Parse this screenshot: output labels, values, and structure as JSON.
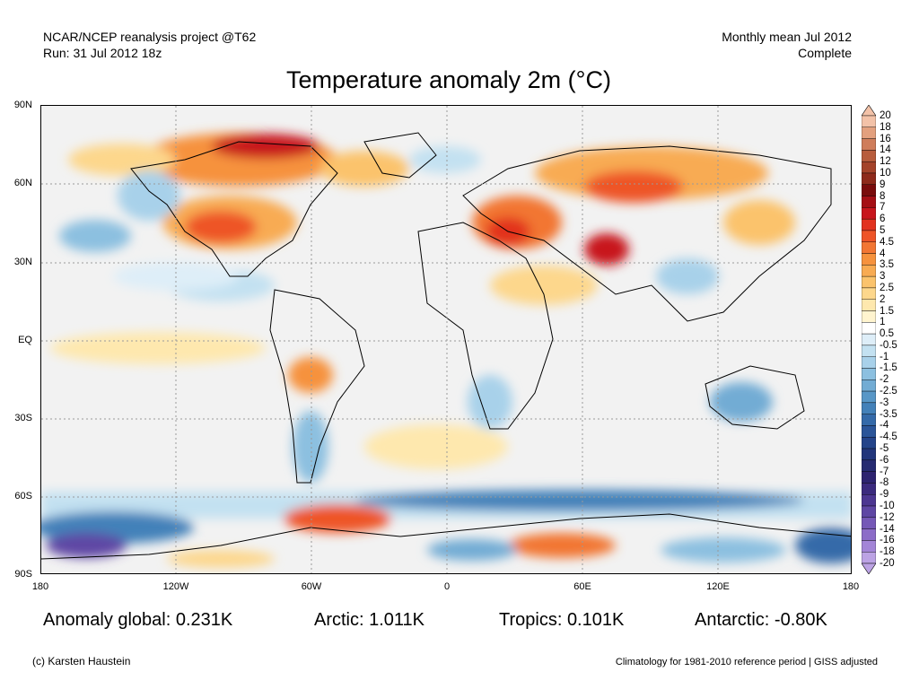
{
  "header": {
    "left_line1": "NCAR/NCEP reanalysis project @T62",
    "left_line2": "Run: 31 Jul 2012 18z",
    "right_line1": "Monthly mean Jul 2012",
    "right_line2": "Complete"
  },
  "title": "Temperature anomaly 2m (°C)",
  "axes": {
    "y_labels": [
      "90N",
      "60N",
      "30N",
      "EQ",
      "30S",
      "60S",
      "90S"
    ],
    "x_labels": [
      "180",
      "120W",
      "60W",
      "0",
      "60E",
      "120E",
      "180"
    ]
  },
  "colorbar": {
    "labels": [
      "20",
      "18",
      "16",
      "14",
      "12",
      "10",
      "9",
      "8",
      "7",
      "6",
      "5",
      "4.5",
      "4",
      "3.5",
      "3",
      "2.5",
      "2",
      "1.5",
      "1",
      "0.5",
      "-0.5",
      "-1",
      "-1.5",
      "-2",
      "-2.5",
      "-3",
      "-3.5",
      "-4",
      "-4.5",
      "-5",
      "-6",
      "-7",
      "-8",
      "-9",
      "-10",
      "-12",
      "-14",
      "-16",
      "-18",
      "-20"
    ],
    "colors": [
      "#f3c2a8",
      "#e3a07e",
      "#cf7d5b",
      "#b85d3d",
      "#a4432a",
      "#8e2a1b",
      "#7a0c0c",
      "#a50f15",
      "#c8161d",
      "#e2321f",
      "#ee5428",
      "#f27633",
      "#f6923d",
      "#f8ab52",
      "#fbc36c",
      "#fdd78c",
      "#fee8ae",
      "#fff4cf",
      "#ffffff",
      "#deeef8",
      "#c3e1f1",
      "#a8d1ea",
      "#8cc0e0",
      "#72acd4",
      "#5897c7",
      "#4381b9",
      "#346aa9",
      "#2b5599",
      "#24448a",
      "#22367c",
      "#262b72",
      "#2d2370",
      "#3b2a7e",
      "#4c3691",
      "#5e46a4",
      "#7558b7",
      "#8c6cc8",
      "#a385d7",
      "#bca3e4"
    ]
  },
  "stats": {
    "global": "Anomaly global: 0.231K",
    "arctic": "Arctic: 1.011K",
    "tropics": "Tropics: 0.101K",
    "antarctic": "Antarctic: -0.80K"
  },
  "footer": {
    "left": "(c) Karsten Haustein",
    "right": "Climatology for 1981-2010 reference period | GISS adjusted"
  }
}
